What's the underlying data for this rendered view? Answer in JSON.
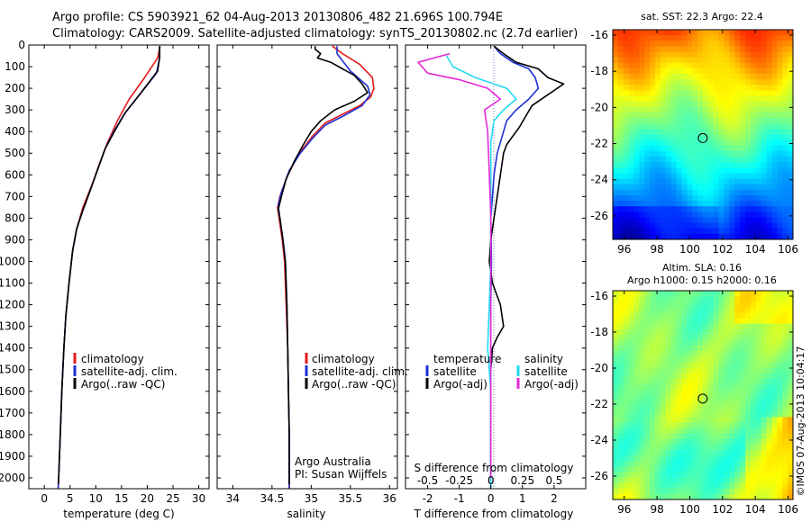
{
  "header": {
    "line1": "Argo profile: CS 5903921_62 04-Aug-2013 20130806_482 21.696S 100.794E",
    "line2": "Climatology: CARS2009. Satellite-adjusted climatology: synTS_20130802.nc (2.7d earlier)"
  },
  "colors": {
    "climatology": "#e41a1c",
    "satellite": "#1f2fd6",
    "argo": "#000000",
    "sal_satellite": "#22d8f0",
    "sal_argo": "#e42ad8",
    "zero_line": "#6080c0"
  },
  "chart_data": [
    {
      "type": "line",
      "xlabel": "temperature (deg C)",
      "ylabel": "",
      "xlim": [
        -3,
        32
      ],
      "ylim": [
        2050,
        0
      ],
      "xticks": [
        "0",
        "5",
        "10",
        "15",
        "20",
        "25",
        "30"
      ],
      "yticks": [
        "0",
        "100",
        "200",
        "300",
        "400",
        "500",
        "600",
        "700",
        "800",
        "900",
        "1000",
        "1100",
        "1200",
        "1300",
        "1400",
        "1500",
        "1600",
        "1700",
        "1800",
        "1900",
        "2000"
      ],
      "legend": [
        "climatology",
        "satellite-adj. clim.",
        "Argo(..raw -QC)"
      ],
      "series": [
        {
          "name": "climatology",
          "color_key": "climatology",
          "points": [
            [
              22.5,
              5
            ],
            [
              22.0,
              60
            ],
            [
              19.5,
              150
            ],
            [
              16.5,
              250
            ],
            [
              14.2,
              350
            ],
            [
              12.3,
              450
            ],
            [
              10.7,
              550
            ],
            [
              9.2,
              650
            ],
            [
              7.5,
              750
            ],
            [
              6.3,
              850
            ],
            [
              5.5,
              950
            ],
            [
              4.8,
              1100
            ],
            [
              4.2,
              1250
            ],
            [
              3.8,
              1400
            ],
            [
              3.4,
              1600
            ],
            [
              3.1,
              1800
            ],
            [
              2.8,
              2000
            ],
            [
              2.7,
              2050
            ]
          ]
        },
        {
          "name": "satellite-adj. clim.",
          "color_key": "satellite",
          "points": [
            [
              22.4,
              5
            ],
            [
              22.4,
              60
            ],
            [
              21.8,
              130
            ],
            [
              18.5,
              230
            ],
            [
              15.5,
              320
            ],
            [
              13.5,
              400
            ],
            [
              11.8,
              480
            ],
            [
              10.3,
              580
            ],
            [
              8.8,
              680
            ],
            [
              7.4,
              770
            ],
            [
              6.3,
              850
            ],
            [
              5.5,
              950
            ],
            [
              4.8,
              1100
            ],
            [
              4.2,
              1250
            ],
            [
              3.8,
              1400
            ],
            [
              3.4,
              1600
            ],
            [
              3.1,
              1800
            ],
            [
              2.8,
              2000
            ],
            [
              2.7,
              2050
            ]
          ]
        },
        {
          "name": "Argo(..raw -QC)",
          "color_key": "argo",
          "points": [
            [
              22.4,
              5
            ],
            [
              22.4,
              60
            ],
            [
              22.0,
              120
            ],
            [
              18.8,
              220
            ],
            [
              15.8,
              310
            ],
            [
              13.6,
              400
            ],
            [
              11.8,
              480
            ],
            [
              10.3,
              580
            ],
            [
              8.8,
              680
            ],
            [
              7.4,
              770
            ],
            [
              6.3,
              850
            ],
            [
              5.5,
              950
            ],
            [
              4.8,
              1100
            ],
            [
              4.2,
              1250
            ],
            [
              3.8,
              1400
            ],
            [
              3.4,
              1600
            ],
            [
              3.1,
              1800
            ],
            [
              2.8,
              2000
            ],
            [
              2.7,
              2030
            ]
          ]
        }
      ]
    },
    {
      "type": "line",
      "xlabel": "salinity",
      "ylabel": "",
      "xlim": [
        33.8,
        36.1
      ],
      "ylim": [
        2050,
        0
      ],
      "xticks": [
        "34",
        "34.5",
        "35",
        "35.5",
        "36"
      ],
      "legend": [
        "climatology",
        "satellite-adj. clim.",
        "Argo(..raw -QC)"
      ],
      "annotation": [
        "Argo Australia",
        "PI: Susan Wijffels"
      ],
      "series": [
        {
          "name": "climatology",
          "color_key": "climatology",
          "points": [
            [
              35.27,
              5
            ],
            [
              35.4,
              40
            ],
            [
              35.62,
              90
            ],
            [
              35.78,
              150
            ],
            [
              35.8,
              200
            ],
            [
              35.76,
              240
            ],
            [
              35.62,
              280
            ],
            [
              35.4,
              320
            ],
            [
              35.18,
              360
            ],
            [
              35.02,
              420
            ],
            [
              34.85,
              500
            ],
            [
              34.7,
              600
            ],
            [
              34.6,
              700
            ],
            [
              34.57,
              750
            ],
            [
              34.59,
              800
            ],
            [
              34.63,
              900
            ],
            [
              34.66,
              1000
            ],
            [
              34.68,
              1200
            ],
            [
              34.7,
              1400
            ],
            [
              34.71,
              1600
            ],
            [
              34.72,
              1800
            ],
            [
              34.72,
              2000
            ],
            [
              34.72,
              2050
            ]
          ]
        },
        {
          "name": "satellite-adj. clim.",
          "color_key": "satellite",
          "points": [
            [
              35.33,
              5
            ],
            [
              35.33,
              40
            ],
            [
              35.5,
              120
            ],
            [
              35.72,
              190
            ],
            [
              35.75,
              230
            ],
            [
              35.65,
              280
            ],
            [
              35.4,
              330
            ],
            [
              35.18,
              370
            ],
            [
              35.02,
              430
            ],
            [
              34.86,
              500
            ],
            [
              34.72,
              580
            ],
            [
              34.62,
              680
            ],
            [
              34.58,
              740
            ],
            [
              34.6,
              800
            ],
            [
              34.64,
              900
            ],
            [
              34.67,
              1000
            ],
            [
              34.69,
              1200
            ],
            [
              34.7,
              1400
            ],
            [
              34.71,
              1600
            ],
            [
              34.72,
              1800
            ],
            [
              34.72,
              2000
            ],
            [
              34.72,
              2050
            ]
          ]
        },
        {
          "name": "Argo(..raw -QC)",
          "color_key": "argo",
          "points": [
            [
              35.05,
              5
            ],
            [
              35.05,
              20
            ],
            [
              35.12,
              40
            ],
            [
              35.08,
              60
            ],
            [
              35.25,
              80
            ],
            [
              35.4,
              110
            ],
            [
              35.55,
              140
            ],
            [
              35.65,
              180
            ],
            [
              35.72,
              220
            ],
            [
              35.55,
              260
            ],
            [
              35.3,
              300
            ],
            [
              35.12,
              350
            ],
            [
              35.0,
              400
            ],
            [
              34.9,
              460
            ],
            [
              34.78,
              540
            ],
            [
              34.68,
              620
            ],
            [
              34.62,
              700
            ],
            [
              34.58,
              760
            ],
            [
              34.6,
              800
            ],
            [
              34.64,
              900
            ],
            [
              34.67,
              1000
            ],
            [
              34.69,
              1200
            ],
            [
              34.7,
              1400
            ],
            [
              34.71,
              1600
            ],
            [
              34.72,
              1800
            ],
            [
              34.72,
              2000
            ],
            [
              34.72,
              2030
            ]
          ]
        }
      ]
    },
    {
      "type": "line",
      "xlabel": "T difference from climatology",
      "xlabel_top": "S difference from climatology",
      "ylabel": "",
      "xlim": [
        -2.7,
        3.0
      ],
      "ylim": [
        2050,
        0
      ],
      "xticks": [
        "-2",
        "-1",
        "0",
        "1",
        "2"
      ],
      "xticks_top": [
        "-0.5",
        "-0.25",
        "0",
        "0.25",
        "0.5"
      ],
      "legend_headings": [
        "temperature",
        "salinity"
      ],
      "legend": [
        "satellite",
        "Argo(-adj)",
        "satellite",
        "Argo(-adj)"
      ],
      "series": [
        {
          "name": "satellite",
          "group": "temperature",
          "color_key": "satellite",
          "points": [
            [
              0.1,
              5
            ],
            [
              0.3,
              40
            ],
            [
              0.7,
              80
            ],
            [
              1.2,
              110
            ],
            [
              1.4,
              150
            ],
            [
              1.5,
              200
            ],
            [
              1.2,
              250
            ],
            [
              0.8,
              300
            ],
            [
              0.5,
              350
            ],
            [
              0.4,
              400
            ],
            [
              0.3,
              450
            ],
            [
              0.2,
              500
            ],
            [
              0.1,
              600
            ],
            [
              0.05,
              700
            ],
            [
              0.0,
              800
            ],
            [
              0.02,
              1000
            ],
            [
              0.0,
              1200
            ],
            [
              0.0,
              1400
            ],
            [
              0.0,
              1600
            ],
            [
              0.0,
              1800
            ],
            [
              0.0,
              2000
            ],
            [
              0.0,
              2050
            ]
          ]
        },
        {
          "name": "Argo(-adj)",
          "group": "temperature",
          "color_key": "argo",
          "points": [
            [
              0.1,
              5
            ],
            [
              0.4,
              40
            ],
            [
              0.8,
              80
            ],
            [
              1.5,
              110
            ],
            [
              1.8,
              150
            ],
            [
              2.3,
              180
            ],
            [
              2.1,
              200
            ],
            [
              1.8,
              230
            ],
            [
              1.3,
              280
            ],
            [
              1.1,
              330
            ],
            [
              0.9,
              380
            ],
            [
              0.7,
              420
            ],
            [
              0.5,
              460
            ],
            [
              0.4,
              500
            ],
            [
              0.3,
              600
            ],
            [
              0.2,
              700
            ],
            [
              0.1,
              800
            ],
            [
              0.0,
              900
            ],
            [
              -0.05,
              1000
            ],
            [
              0.05,
              1100
            ],
            [
              0.3,
              1200
            ],
            [
              0.4,
              1300
            ],
            [
              0.2,
              1350
            ],
            [
              0.05,
              1400
            ],
            [
              0.0,
              1500
            ],
            [
              0.0,
              1700
            ],
            [
              0.0,
              1900
            ],
            [
              0.0,
              2030
            ]
          ]
        },
        {
          "name": "satellite",
          "group": "salinity",
          "color_key": "sal_satellite",
          "points": [
            [
              -1.4,
              50
            ],
            [
              -1.2,
              100
            ],
            [
              -0.5,
              150
            ],
            [
              0.5,
              200
            ],
            [
              0.8,
              250
            ],
            [
              0.4,
              300
            ],
            [
              0.1,
              350
            ],
            [
              0.0,
              450
            ],
            [
              0.0,
              600
            ],
            [
              0.0,
              800
            ],
            [
              0.0,
              1000
            ],
            [
              -0.05,
              1200
            ],
            [
              -0.1,
              1400
            ],
            [
              0.0,
              1600
            ],
            [
              0.0,
              2000
            ],
            [
              0.0,
              2050
            ]
          ]
        },
        {
          "name": "Argo(-adj)",
          "group": "salinity",
          "color_key": "sal_argo",
          "points": [
            [
              -1.3,
              40
            ],
            [
              -2.3,
              80
            ],
            [
              -2.0,
              130
            ],
            [
              -1.0,
              160
            ],
            [
              -0.1,
              200
            ],
            [
              0.3,
              250
            ],
            [
              -0.2,
              300
            ],
            [
              -0.1,
              400
            ],
            [
              -0.05,
              600
            ],
            [
              0.0,
              800
            ],
            [
              0.0,
              1000
            ],
            [
              0.0,
              1200
            ],
            [
              0.0,
              1400
            ],
            [
              0.0,
              1600
            ],
            [
              0.0,
              2000
            ]
          ]
        }
      ]
    },
    {
      "type": "heatmap",
      "title": "sat. SST: 22.3 Argo: 22.4",
      "xlim": [
        95.3,
        106.3
      ],
      "ylim": [
        -27.3,
        -15.7
      ],
      "xticks": [
        "96",
        "98",
        "100",
        "102",
        "104",
        "106"
      ],
      "yticks": [
        "-16",
        "-18",
        "-20",
        "-22",
        "-24",
        "-26"
      ],
      "marker": {
        "lon": 100.794,
        "lat": -21.696
      }
    },
    {
      "type": "heatmap",
      "title": "Altim. SLA: 0.16",
      "subtitle": "Argo h1000: 0.15 h2000: 0.16",
      "xlim": [
        95.3,
        106.3
      ],
      "ylim": [
        -27.3,
        -15.7
      ],
      "xticks": [
        "96",
        "98",
        "100",
        "102",
        "104",
        "106"
      ],
      "yticks": [
        "-16",
        "-18",
        "-20",
        "-22",
        "-24",
        "-26"
      ],
      "marker": {
        "lon": 100.794,
        "lat": -21.696
      }
    }
  ],
  "watermark": "©IMOS 07-Aug-2013 10:04:17"
}
